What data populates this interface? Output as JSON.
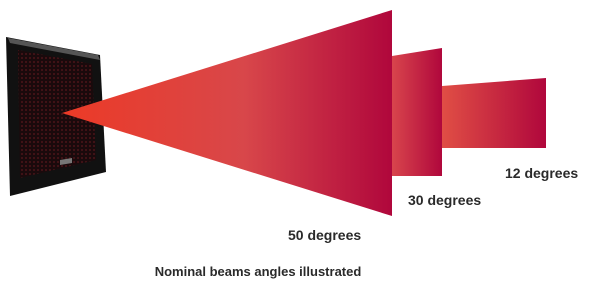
{
  "beams": [
    {
      "label": "50 degrees"
    },
    {
      "label": "30 degrees"
    },
    {
      "label": "12 degrees"
    }
  ],
  "caption": "Nominal beams angles illustrated"
}
